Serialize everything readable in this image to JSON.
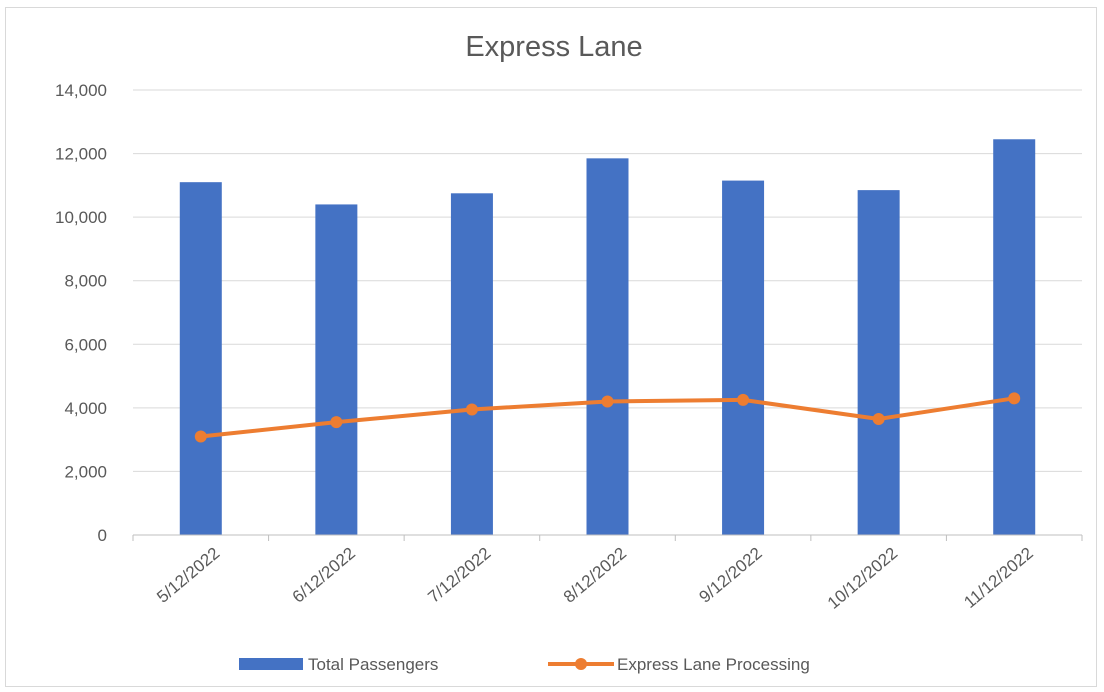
{
  "chart_data": {
    "type": "bar",
    "title": "Express Lane",
    "xlabel": "",
    "ylabel": "",
    "categories": [
      "5/12/2022",
      "6/12/2022",
      "7/12/2022",
      "8/12/2022",
      "9/12/2022",
      "10/12/2022",
      "11/12/2022"
    ],
    "series": [
      {
        "name": "Total Passengers",
        "type": "bar",
        "color": "#4472C4",
        "values": [
          11100,
          10400,
          10750,
          11850,
          11150,
          10850,
          12450
        ]
      },
      {
        "name": "Express Lane Processing",
        "type": "line",
        "color": "#ED7D31",
        "values": [
          3100,
          3550,
          3950,
          4200,
          4250,
          3650,
          4300
        ]
      }
    ],
    "ylim": [
      0,
      14000
    ],
    "yticks": [
      0,
      2000,
      4000,
      6000,
      8000,
      10000,
      12000,
      14000
    ],
    "ytick_labels": [
      "0",
      "2,000",
      "4,000",
      "6,000",
      "8,000",
      "10,000",
      "12,000",
      "14,000"
    ],
    "grid": true,
    "legend_position": "bottom"
  }
}
